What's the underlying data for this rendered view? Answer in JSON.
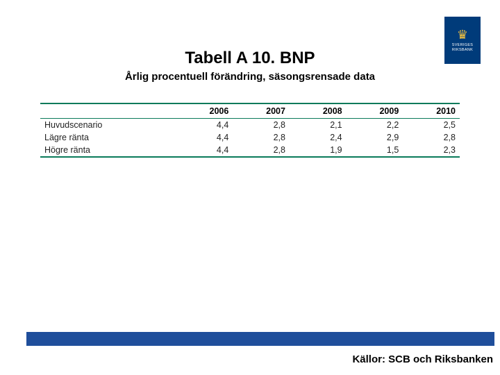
{
  "brand": {
    "name_line1": "SVERIGES",
    "name_line2": "RIKSBANK",
    "box_bg": "#003b7a",
    "symbol_color": "#f0c040",
    "text_color": "#ffffff"
  },
  "title": "Tabell A 10. BNP",
  "subtitle": "Årlig procentuell förändring, säsongsrensade data",
  "table": {
    "type": "table",
    "rule_color": "#0a7a5a",
    "header_text_color": "#000000",
    "cell_text_color": "#222222",
    "font_size_pt": 12.5,
    "columns": [
      "",
      "2006",
      "2007",
      "2008",
      "2009",
      "2010"
    ],
    "col_align": [
      "left",
      "right",
      "right",
      "right",
      "right",
      "right"
    ],
    "rows": [
      [
        "Huvudscenario",
        "4,4",
        "2,8",
        "2,1",
        "2,2",
        "2,5"
      ],
      [
        "Lägre ränta",
        "4,4",
        "2,8",
        "2,4",
        "2,9",
        "2,8"
      ],
      [
        "Högre ränta",
        "4,4",
        "2,8",
        "1,9",
        "1,5",
        "2,3"
      ]
    ]
  },
  "bar_color": "#1f4e9b",
  "sources": "Källor: SCB och Riksbanken"
}
